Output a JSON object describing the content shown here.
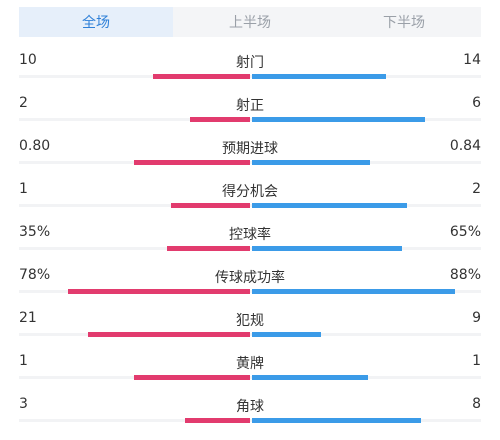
{
  "tabs": [
    {
      "label": "全场",
      "active": true
    },
    {
      "label": "上半场",
      "active": false
    },
    {
      "label": "下半场",
      "active": false
    }
  ],
  "colors": {
    "home": "#e23b6e",
    "away": "#3b9be8",
    "active_tab_text": "#2f80d8"
  },
  "stats": [
    {
      "label": "射门",
      "home": "10",
      "away": "14",
      "home_bar": 0.42,
      "away_bar": 0.58
    },
    {
      "label": "射正",
      "home": "2",
      "away": "6",
      "home_bar": 0.26,
      "away_bar": 0.75
    },
    {
      "label": "预期进球",
      "home": "0.80",
      "away": "0.84",
      "home_bar": 0.5,
      "away_bar": 0.51
    },
    {
      "label": "得分机会",
      "home": "1",
      "away": "2",
      "home_bar": 0.34,
      "away_bar": 0.67
    },
    {
      "label": "控球率",
      "home": "35%",
      "away": "65%",
      "home_bar": 0.36,
      "away_bar": 0.65
    },
    {
      "label": "传球成功率",
      "home": "78%",
      "away": "88%",
      "home_bar": 0.79,
      "away_bar": 0.88
    },
    {
      "label": "犯规",
      "home": "21",
      "away": "9",
      "home_bar": 0.7,
      "away_bar": 0.3
    },
    {
      "label": "黄牌",
      "home": "1",
      "away": "1",
      "home_bar": 0.5,
      "away_bar": 0.5
    },
    {
      "label": "角球",
      "home": "3",
      "away": "8",
      "home_bar": 0.28,
      "away_bar": 0.73
    }
  ]
}
